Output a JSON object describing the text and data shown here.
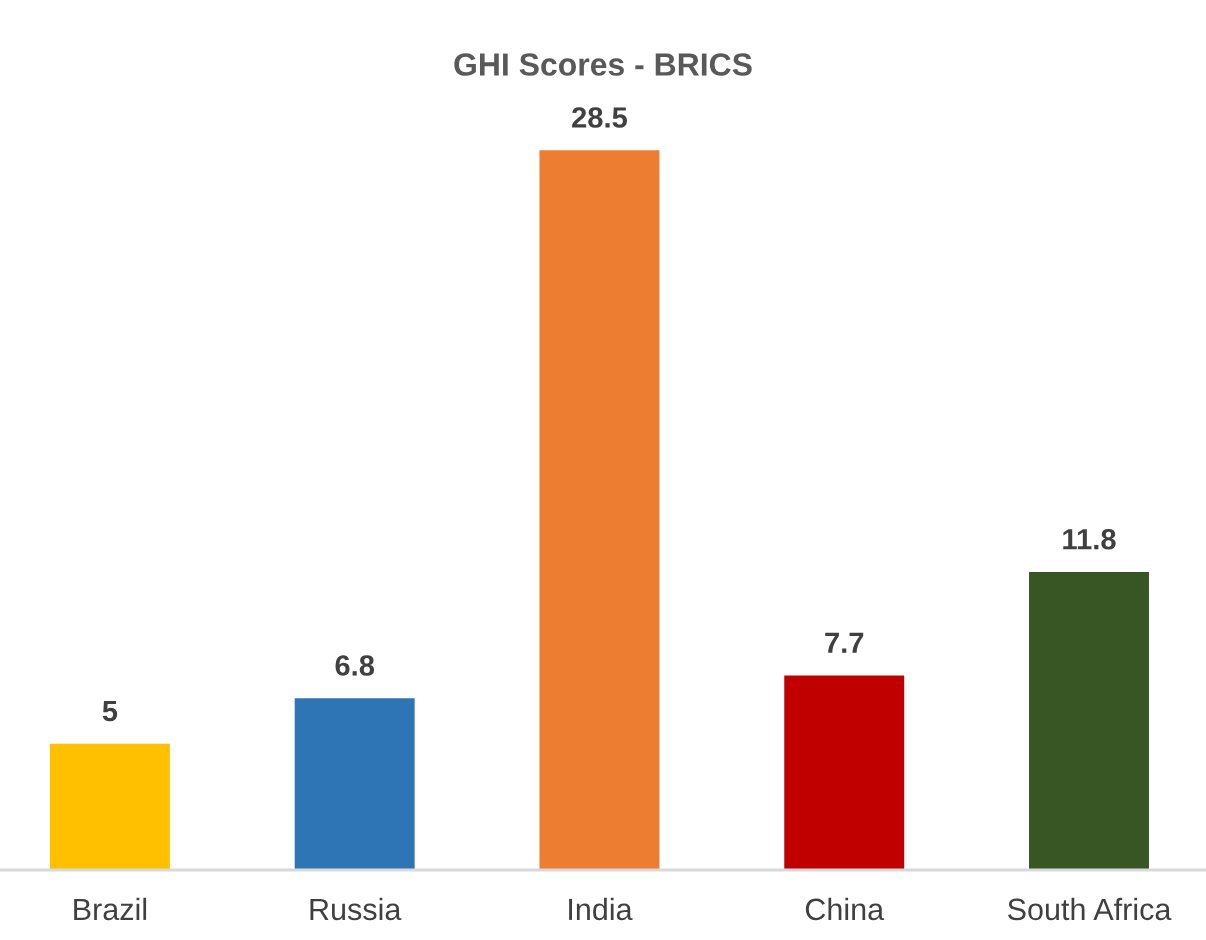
{
  "chart_data": {
    "type": "bar",
    "title": "GHI Scores - BRICS",
    "categories": [
      "Brazil",
      "Russia",
      "India",
      "China",
      "South Africa"
    ],
    "values": [
      5,
      6.8,
      28.5,
      7.7,
      11.8
    ],
    "colors": [
      "#ffc000",
      "#2e75b6",
      "#ed7d31",
      "#c00000",
      "#375623"
    ],
    "data_labels": true,
    "tick_labels": "x"
  }
}
